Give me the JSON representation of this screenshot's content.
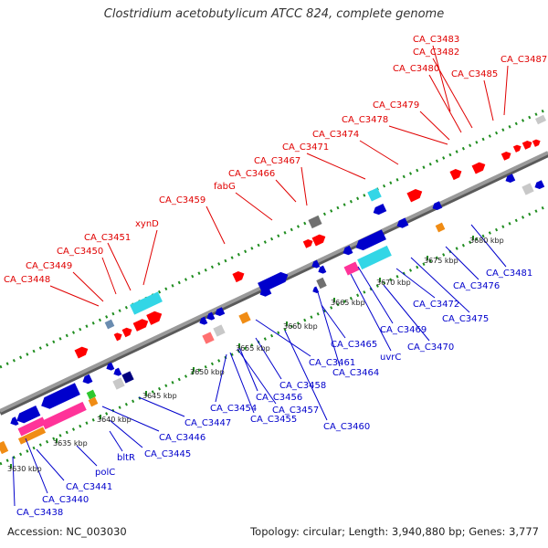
{
  "title": "Clostridium acetobutylicum ATCC 824, complete genome",
  "footer": {
    "accession": "Accession: NC_003030",
    "summary": "Topology: circular; Length: 3,940,880 bp; Genes: 3,777"
  },
  "colors": {
    "forward_label": "#e00000",
    "reverse_label": "#0000cc",
    "backbone": "#8c8c8c",
    "tick": "#1e8c1e"
  },
  "ticks": [
    "3630 kbp",
    "3635 kbp",
    "3640 kbp",
    "3645 kbp",
    "3650 kbp",
    "3655 kbp",
    "3660 kbp",
    "3665 kbp",
    "3670 kbp",
    "3675 kbp",
    "3680 kbp"
  ],
  "top_labels": [
    "CA_C3448",
    "CA_C3449",
    "CA_C3450",
    "CA_C3451",
    "xynD",
    "CA_C3459",
    "fabG",
    "CA_C3466",
    "CA_C3467",
    "CA_C3471",
    "CA_C3474",
    "CA_C3478",
    "CA_C3479",
    "CA_C3480",
    "CA_C3482",
    "CA_C3483",
    "CA_C3485",
    "CA_C3487"
  ],
  "bottom_labels": [
    "CA_C3438",
    "CA_C3440",
    "CA_C3441",
    "polC",
    "bltR",
    "CA_C3445",
    "CA_C3446",
    "CA_C3447",
    "CA_C3454",
    "CA_C3455",
    "CA_C3456",
    "CA_C3457",
    "CA_C3458",
    "CA_C3460",
    "CA_C3461",
    "CA_C3464",
    "CA_C3465",
    "uvrC",
    "CA_C3469",
    "CA_C3470",
    "CA_C3472",
    "CA_C3475",
    "CA_C3476",
    "CA_C3481"
  ]
}
